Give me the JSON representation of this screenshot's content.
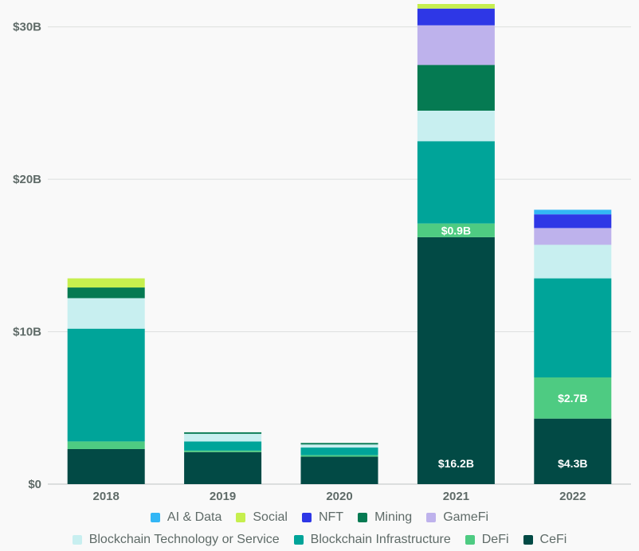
{
  "colors": {
    "CeFi": "#024a45",
    "DeFi": "#4ecb82",
    "Blockchain Infrastructure": "#00a499",
    "Blockchain Technology or Service": "#c8eff0",
    "GameFi": "#beb2ec",
    "Mining": "#057a52",
    "NFT": "#2e37e6",
    "Social": "#c6ef4e",
    "AI & Data": "#33b6f5"
  },
  "legend": {
    "row1": [
      "AI & Data",
      "Social",
      "NFT",
      "Mining",
      "GameFi"
    ],
    "row2": [
      "Blockchain Technology or Service",
      "Blockchain Infrastructure",
      "DeFi",
      "CeFi"
    ]
  },
  "chart_data": {
    "type": "bar",
    "stacked": true,
    "categories": [
      "2018",
      "2019",
      "2020",
      "2021",
      "2022"
    ],
    "y_ticks": [
      "$0",
      "$10B",
      "$20B",
      "$30B"
    ],
    "ylim": [
      0,
      31.5
    ],
    "grid": true,
    "legend_position": "bottom",
    "series": [
      {
        "name": "CeFi",
        "values": [
          2.3,
          2.1,
          1.8,
          16.2,
          4.3
        ]
      },
      {
        "name": "DeFi",
        "values": [
          0.5,
          0.1,
          0.1,
          0.9,
          2.7
        ]
      },
      {
        "name": "Blockchain Infrastructure",
        "values": [
          7.4,
          0.6,
          0.5,
          5.4,
          6.5
        ]
      },
      {
        "name": "Blockchain Technology or Service",
        "values": [
          2.0,
          0.5,
          0.2,
          2.0,
          2.2
        ]
      },
      {
        "name": "Mining",
        "values": [
          0.7,
          0.1,
          0.1,
          3.0,
          0.0
        ]
      },
      {
        "name": "GameFi",
        "values": [
          0.0,
          0.0,
          0.0,
          2.6,
          1.1
        ]
      },
      {
        "name": "NFT",
        "values": [
          0.0,
          0.0,
          0.0,
          1.1,
          0.9
        ]
      },
      {
        "name": "Social",
        "values": [
          0.6,
          0.0,
          0.0,
          0.3,
          0.0
        ]
      },
      {
        "name": "AI & Data",
        "values": [
          0.0,
          0.0,
          0.0,
          0.0,
          0.3
        ]
      }
    ],
    "data_labels": [
      {
        "series": "CeFi",
        "category": "2021",
        "text": "$16.2B"
      },
      {
        "series": "DeFi",
        "category": "2021",
        "text": "$0.9B"
      },
      {
        "series": "CeFi",
        "category": "2022",
        "text": "$4.3B"
      },
      {
        "series": "DeFi",
        "category": "2022",
        "text": "$2.7B"
      }
    ]
  }
}
